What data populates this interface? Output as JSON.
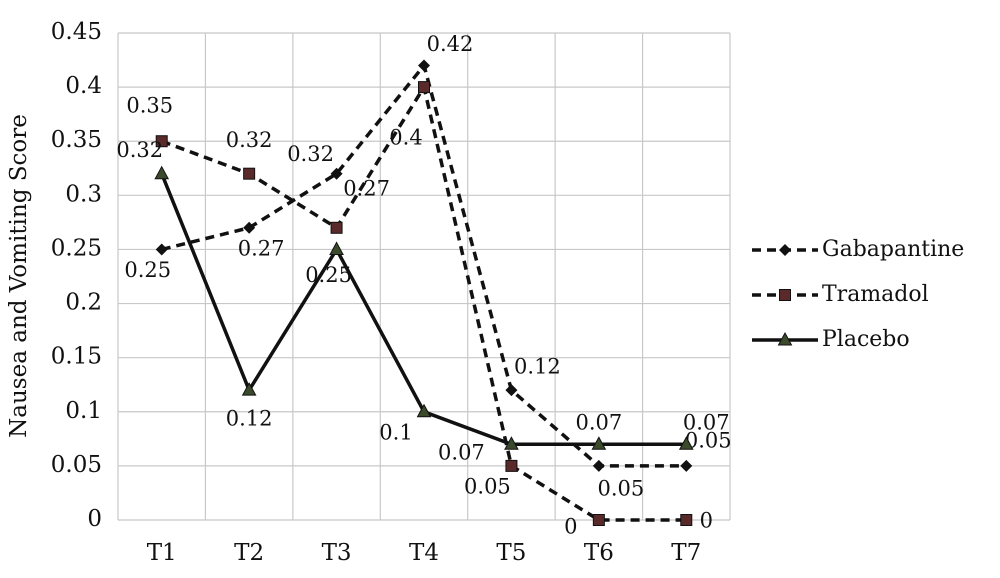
{
  "chart_data": {
    "type": "line",
    "y_label": "Nausea and Vomiting Score",
    "categories": [
      "T1",
      "T2",
      "T3",
      "T4",
      "T5",
      "T6",
      "T7"
    ],
    "series": [
      {
        "name": "Gabapantine",
        "color": "#111111",
        "style": "dashed",
        "marker": "diamond",
        "values": [
          0.25,
          0.27,
          0.32,
          0.42,
          0.12,
          0.05,
          0.05
        ]
      },
      {
        "name": "Tramadol",
        "color": "#111111",
        "style": "dashed",
        "marker": "square",
        "values": [
          0.35,
          0.32,
          0.27,
          0.4,
          0.05,
          0,
          0
        ]
      },
      {
        "name": "Placebo",
        "color": "#111111",
        "style": "solid",
        "marker": "triangle",
        "values": [
          0.32,
          0.12,
          0.25,
          0.1,
          0.07,
          0.07,
          0.07
        ]
      }
    ],
    "ylim": [
      0,
      0.45
    ],
    "yticks": [
      0,
      0.05,
      0.1,
      0.15,
      0.2,
      0.25,
      0.3,
      0.35,
      0.4,
      0.45
    ],
    "grid": true,
    "legend": "right"
  }
}
